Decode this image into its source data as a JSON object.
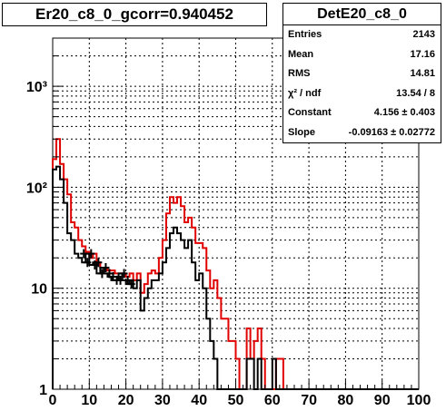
{
  "title": "Er20_c8_0_gcorr=0.940452",
  "stats": {
    "title": "DetE20_c8_0",
    "rows": [
      {
        "label": "Entries",
        "value": "2143"
      },
      {
        "label": "Mean",
        "value": "17.16"
      },
      {
        "label": "RMS",
        "value": "14.81"
      },
      {
        "label": "χ² / ndf",
        "value": "13.54 / 8"
      },
      {
        "label": "Constant",
        "value": "4.156 ± 0.403"
      },
      {
        "label": "Slope",
        "value": "-0.09163 ± 0.02772"
      }
    ]
  },
  "colors": {
    "series_black": "#000000",
    "series_red": "#e00000",
    "grid": "#000000"
  },
  "chart_data": {
    "type": "line",
    "xlim": [
      0,
      100
    ],
    "ylim": [
      1,
      3000
    ],
    "yscale": "log",
    "grid": true,
    "xticks": [
      0,
      10,
      20,
      30,
      40,
      50,
      60,
      70,
      80,
      90,
      100
    ],
    "xtick_labels": [
      "0",
      "10",
      "20",
      "30",
      "40",
      "50",
      "60",
      "70",
      "80",
      "90",
      "100"
    ],
    "yticks": [
      1,
      10,
      100,
      1000
    ],
    "ytick_labels": [
      "1",
      "10",
      "10²",
      "10³"
    ],
    "series": [
      {
        "color": "#e00000",
        "bin_width": 1,
        "values": [
          190,
          300,
          170,
          120,
          85,
          45,
          40,
          30,
          26,
          23,
          20,
          22,
          18,
          16,
          16,
          15,
          15,
          14,
          14,
          14,
          13,
          14,
          12,
          14,
          9,
          11,
          14,
          15,
          14,
          20,
          30,
          55,
          80,
          70,
          80,
          65,
          45,
          50,
          40,
          28,
          28,
          25,
          15,
          10,
          12,
          8,
          5,
          5,
          3,
          3,
          2,
          1,
          1,
          4,
          2,
          3,
          4,
          2,
          1,
          1,
          1,
          2,
          2,
          1,
          1,
          1,
          1,
          1,
          1,
          1,
          1,
          1,
          1,
          1,
          1,
          1,
          1,
          1,
          1,
          1,
          1,
          1,
          1,
          1,
          1,
          1,
          1,
          1,
          1,
          1,
          1,
          1,
          1,
          1,
          1,
          1,
          1,
          1,
          1,
          1
        ]
      },
      {
        "color": "#000000",
        "bin_width": 1,
        "values": [
          150,
          160,
          120,
          70,
          35,
          30,
          22,
          20,
          18,
          22,
          17,
          18,
          14,
          16,
          14,
          13,
          12,
          12,
          14,
          12,
          11,
          12,
          10,
          12,
          6,
          8,
          10,
          12,
          12,
          14,
          18,
          25,
          35,
          40,
          35,
          30,
          25,
          30,
          18,
          12,
          14,
          10,
          5,
          3,
          2,
          1,
          1,
          1,
          1,
          1,
          1,
          1,
          1,
          2,
          2,
          1,
          2,
          1,
          1,
          1,
          2,
          1,
          1,
          1,
          1,
          1,
          1,
          1,
          1,
          1,
          1,
          1,
          1,
          1,
          1,
          1,
          1,
          1,
          1,
          1,
          1,
          1,
          1,
          1,
          1,
          1,
          1,
          1,
          1,
          1,
          1,
          1,
          1,
          1,
          1,
          1,
          1,
          1,
          1,
          1
        ]
      }
    ]
  }
}
